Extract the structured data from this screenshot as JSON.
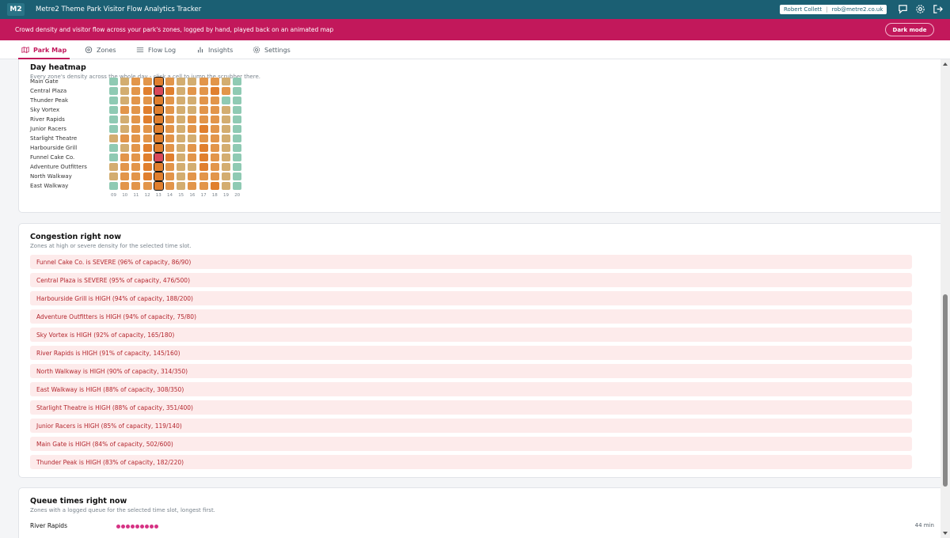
{
  "header": {
    "logo": "M2",
    "title": "Metre2 Theme Park Visitor Flow Analytics Tracker",
    "user_name": "Robert Collett",
    "user_email": "rob@metre2.co.uk",
    "icons": [
      "comment-icon",
      "gear-icon",
      "logout-icon"
    ]
  },
  "banner": {
    "text": "Crowd density and visitor flow across your park's zones, logged by hand, played back on an animated map",
    "dark_mode_label": "Dark mode"
  },
  "tabs": [
    {
      "label": "Park Map",
      "icon": "map-icon",
      "active": true
    },
    {
      "label": "Zones",
      "icon": "pin-icon",
      "active": false
    },
    {
      "label": "Flow Log",
      "icon": "list-icon",
      "active": false
    },
    {
      "label": "Insights",
      "icon": "bar-chart-icon",
      "active": false
    },
    {
      "label": "Settings",
      "icon": "gear-icon",
      "active": false
    }
  ],
  "heatmap": {
    "title": "Day heatmap",
    "subtitle": "Every zone's density across the whole day - click a cell to jump the scrubber there.",
    "hours": [
      "09",
      "10",
      "11",
      "12",
      "13",
      "14",
      "15",
      "16",
      "17",
      "18",
      "19",
      "20"
    ],
    "selected_hour_index": 4,
    "zones": [
      {
        "name": "Main Gate",
        "cells": [
          "low",
          "med",
          "mhigh",
          "mhigh",
          "high",
          "mhigh",
          "med",
          "med",
          "mhigh",
          "mhigh",
          "med",
          "low"
        ]
      },
      {
        "name": "Central Plaza",
        "cells": [
          "low",
          "med",
          "mhigh",
          "high",
          "severe",
          "high",
          "med",
          "mhigh",
          "mhigh",
          "high",
          "mhigh",
          "low"
        ]
      },
      {
        "name": "Thunder Peak",
        "cells": [
          "low",
          "med",
          "mhigh",
          "mhigh",
          "high",
          "mhigh",
          "med",
          "med",
          "mhigh",
          "mhigh",
          "low",
          "low"
        ]
      },
      {
        "name": "Sky Vortex",
        "cells": [
          "low",
          "mhigh",
          "mhigh",
          "high",
          "high",
          "mhigh",
          "med",
          "med",
          "mhigh",
          "mhigh",
          "med",
          "low"
        ]
      },
      {
        "name": "River Rapids",
        "cells": [
          "low",
          "med",
          "mhigh",
          "high",
          "high",
          "mhigh",
          "med",
          "mhigh",
          "mhigh",
          "mhigh",
          "med",
          "low"
        ]
      },
      {
        "name": "Junior Racers",
        "cells": [
          "low",
          "med",
          "mhigh",
          "mhigh",
          "high",
          "mhigh",
          "med",
          "mhigh",
          "high",
          "mhigh",
          "med",
          "low"
        ]
      },
      {
        "name": "Starlight Theatre",
        "cells": [
          "med",
          "mhigh",
          "mhigh",
          "mhigh",
          "high",
          "mhigh",
          "med",
          "med",
          "mhigh",
          "mhigh",
          "med",
          "low"
        ]
      },
      {
        "name": "Harbourside Grill",
        "cells": [
          "low",
          "med",
          "mhigh",
          "high",
          "high",
          "mhigh",
          "med",
          "mhigh",
          "high",
          "mhigh",
          "med",
          "low"
        ]
      },
      {
        "name": "Funnel Cake Co.",
        "cells": [
          "low",
          "mhigh",
          "mhigh",
          "high",
          "severe",
          "high",
          "med",
          "mhigh",
          "high",
          "mhigh",
          "med",
          "low"
        ]
      },
      {
        "name": "Adventure Outfitters",
        "cells": [
          "med",
          "mhigh",
          "mhigh",
          "high",
          "high",
          "mhigh",
          "med",
          "med",
          "high",
          "mhigh",
          "med",
          "low"
        ]
      },
      {
        "name": "North Walkway",
        "cells": [
          "med",
          "mhigh",
          "mhigh",
          "high",
          "high",
          "mhigh",
          "med",
          "mhigh",
          "mhigh",
          "mhigh",
          "med",
          "low"
        ]
      },
      {
        "name": "East Walkway",
        "cells": [
          "low",
          "mhigh",
          "mhigh",
          "mhigh",
          "high",
          "mhigh",
          "med",
          "mhigh",
          "mhigh",
          "high",
          "med",
          "low"
        ]
      }
    ],
    "colors": {
      "low": "#8fcab3",
      "med": "#d3ad70",
      "mhigh": "#e2954a",
      "high": "#e07f2e",
      "severe": "#d9485a"
    }
  },
  "congestion": {
    "title": "Congestion right now",
    "subtitle": "Zones at high or severe density for the selected time slot.",
    "items": [
      "Funnel Cake Co. is SEVERE (96% of capacity, 86/90)",
      "Central Plaza is SEVERE (95% of capacity, 476/500)",
      "Harbourside Grill is HIGH (94% of capacity, 188/200)",
      "Adventure Outfitters is HIGH (94% of capacity, 75/80)",
      "Sky Vortex is HIGH (92% of capacity, 165/180)",
      "River Rapids is HIGH (91% of capacity, 145/160)",
      "North Walkway is HIGH (90% of capacity, 314/350)",
      "East Walkway is HIGH (88% of capacity, 308/350)",
      "Starlight Theatre is HIGH (88% of capacity, 351/400)",
      "Junior Racers is HIGH (85% of capacity, 119/140)",
      "Main Gate is HIGH (84% of capacity, 502/600)",
      "Thunder Peak is HIGH (83% of capacity, 182/220)"
    ]
  },
  "queues": {
    "title": "Queue times right now",
    "subtitle": "Zones with a logged queue for the selected time slot, longest first.",
    "items": [
      {
        "zone": "River Rapids",
        "dots": 9,
        "time": "44 min"
      }
    ]
  }
}
